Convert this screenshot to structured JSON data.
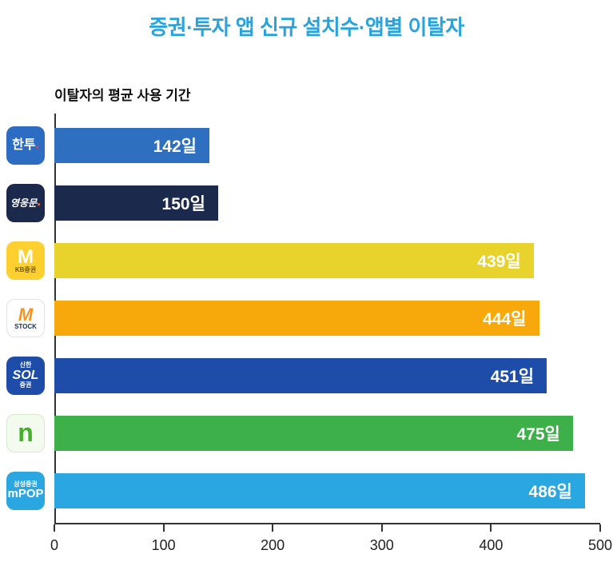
{
  "title": "증권·투자 앱 신규 설치수·앱별 이탈자",
  "subtitle": "이탈자의 평균 사용 기간",
  "colors": {
    "title": "#2AA3DB",
    "axis": "#333333",
    "tick_label": "#222222",
    "value_label": "#ffffff"
  },
  "chart_data": {
    "type": "bar",
    "orientation": "horizontal",
    "title": "증권·투자 앱 신규 설치수·앱별 이탈자",
    "subtitle": "이탈자의 평균 사용 기간",
    "xlabel": "",
    "ylabel": "",
    "xlim": [
      0,
      500
    ],
    "x_ticks": [
      0,
      100,
      200,
      300,
      400,
      500
    ],
    "grid": false,
    "legend": false,
    "unit": "일",
    "categories": [
      "한투",
      "영웅문",
      "M KB증권",
      "M STOCK",
      "신한 SOL 증권",
      "n",
      "삼성증권 mPOP"
    ],
    "values": [
      142,
      150,
      439,
      444,
      451,
      475,
      486
    ],
    "value_labels": [
      "142일",
      "150일",
      "439일",
      "444일",
      "451일",
      "475일",
      "486일"
    ],
    "apps": [
      {
        "name": "한투",
        "value": 142,
        "value_label": "142일",
        "bar_color": "#2E6FC0",
        "icon": {
          "name": "hantoo-app-icon",
          "bg": "#2D6CC3",
          "border": "",
          "lines": [
            {
              "segments": [
                {
                  "text": "한투",
                  "color": "#ffffff",
                  "size": 16,
                  "weight": 800
                },
                {
                  "text": "●",
                  "color": "#FF3B30",
                  "size": 7,
                  "weight": 800
                }
              ]
            }
          ]
        }
      },
      {
        "name": "영웅문",
        "value": 150,
        "value_label": "150일",
        "bar_color": "#1B2A4C",
        "icon": {
          "name": "kiwoom-heroes-app-icon",
          "bg": "#1B2A4C",
          "border": "",
          "lines": [
            {
              "segments": [
                {
                  "text": "영웅문",
                  "color": "#ffffff",
                  "size": 12,
                  "weight": 700,
                  "italic": true
                },
                {
                  "text": "●",
                  "color": "#F15A24",
                  "size": 8,
                  "weight": 800
                }
              ]
            }
          ]
        }
      },
      {
        "name": "M KB증권",
        "value": 439,
        "value_label": "439일",
        "bar_color": "#E7D32C",
        "icon": {
          "name": "kb-mable-app-icon",
          "bg": "#FDCF2F",
          "border": "",
          "lines": [
            {
              "segments": [
                {
                  "text": "M",
                  "color": "#ffffff",
                  "size": 24,
                  "weight": 800
                }
              ]
            },
            {
              "segments": [
                {
                  "text": "KB증권",
                  "color": "#6F5A17",
                  "size": 8,
                  "weight": 700
                }
              ]
            }
          ]
        }
      },
      {
        "name": "M STOCK",
        "value": 444,
        "value_label": "444일",
        "bar_color": "#F7A90C",
        "icon": {
          "name": "mirae-mstock-app-icon",
          "bg": "#FFFFFF",
          "border": "#E2E2E2",
          "lines": [
            {
              "segments": [
                {
                  "text": "M",
                  "color": "#F7941E",
                  "size": 22,
                  "weight": 800,
                  "italic": true
                }
              ]
            },
            {
              "segments": [
                {
                  "text": "STOCK",
                  "color": "#17306B",
                  "size": 8,
                  "weight": 800
                }
              ]
            }
          ]
        }
      },
      {
        "name": "신한 SOL 증권",
        "value": 451,
        "value_label": "451일",
        "bar_color": "#1D4CA9",
        "icon": {
          "name": "shinhan-sol-app-icon",
          "bg": "#1D4CA9",
          "border": "",
          "lines": [
            {
              "segments": [
                {
                  "text": "신한",
                  "color": "#ffffff",
                  "size": 8,
                  "weight": 700
                }
              ]
            },
            {
              "segments": [
                {
                  "text": "SOL",
                  "color": "#ffffff",
                  "size": 16,
                  "weight": 800,
                  "italic": true
                }
              ]
            },
            {
              "segments": [
                {
                  "text": "증권",
                  "color": "#ffffff",
                  "size": 8,
                  "weight": 700
                }
              ]
            }
          ]
        }
      },
      {
        "name": "n",
        "value": 475,
        "value_label": "475일",
        "bar_color": "#3EB04A",
        "icon": {
          "name": "namuh-app-icon",
          "bg": "#F3FAEE",
          "border": "#D8E8CC",
          "lines": [
            {
              "segments": [
                {
                  "text": "n",
                  "color": "#43B02A",
                  "size": 32,
                  "weight": 800
                }
              ]
            }
          ]
        }
      },
      {
        "name": "삼성증권 mPOP",
        "value": 486,
        "value_label": "486일",
        "bar_color": "#2AA7E1",
        "icon": {
          "name": "samsung-mpop-app-icon",
          "bg": "#2AA7E1",
          "border": "",
          "lines": [
            {
              "segments": [
                {
                  "text": "삼성증권",
                  "color": "#ffffff",
                  "size": 8,
                  "weight": 700
                }
              ]
            },
            {
              "segments": [
                {
                  "text": "mPOP",
                  "color": "#ffffff",
                  "size": 15,
                  "weight": 800
                }
              ]
            }
          ]
        }
      }
    ]
  }
}
